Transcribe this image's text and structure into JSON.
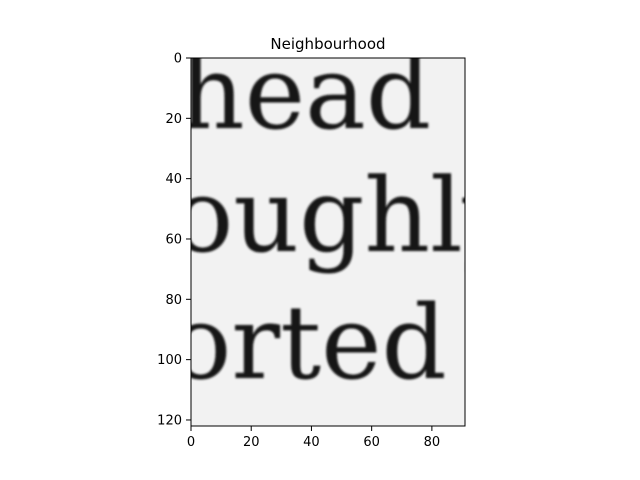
{
  "figure": {
    "title": "Neighbourhood",
    "background": "#ffffff",
    "paper_color": "#f2f2f2",
    "ink_color": "#171717"
  },
  "image_content": {
    "lines": [
      "head",
      "oughly",
      "orted"
    ]
  },
  "axes": {
    "x_ticks": [
      "0",
      "20",
      "40",
      "60",
      "80"
    ],
    "y_ticks": [
      "0",
      "20",
      "40",
      "60",
      "80",
      "100",
      "120"
    ],
    "x_range": [
      0,
      91
    ],
    "y_range": [
      0,
      122
    ]
  }
}
